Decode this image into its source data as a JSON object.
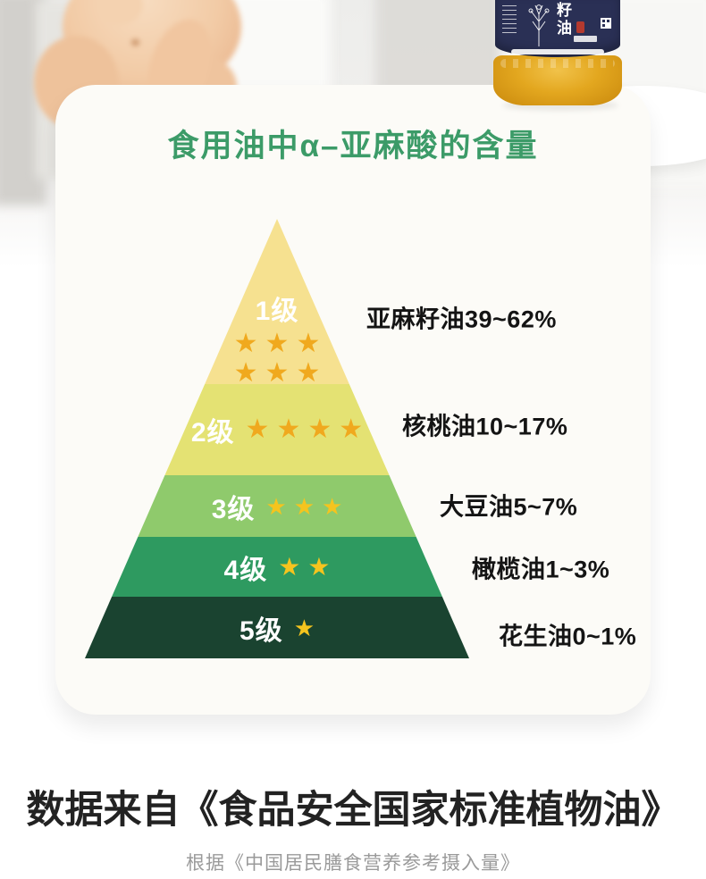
{
  "page": {
    "title": "食用油中α–亚麻酸的含量",
    "title_color": "#3C9B68"
  },
  "hero": {
    "bottle": {
      "label_text": "籽油",
      "label_color": "#2A3055",
      "oil_color": "#E3A71F"
    }
  },
  "chart_data": {
    "type": "pyramid",
    "title": "食用油中α–亚麻酸的含量",
    "value_unit": "% α-linolenic acid",
    "levels": [
      {
        "rank": "1级",
        "stars": 6,
        "oil": "亚麻籽油",
        "range": "39~62%",
        "label": "亚麻籽油39~62%",
        "color": "#F6E190",
        "star_color": "#F0A91E"
      },
      {
        "rank": "2级",
        "stars": 4,
        "oil": "核桃油",
        "range": "10~17%",
        "label": "核桃油10~17%",
        "color": "#E4E273",
        "star_color": "#F0A91E"
      },
      {
        "rank": "3级",
        "stars": 3,
        "oil": "大豆油",
        "range": "5~7%",
        "label": "大豆油5~7%",
        "color": "#8FCA6C",
        "star_color": "#F5C41E"
      },
      {
        "rank": "4级",
        "stars": 2,
        "oil": "橄榄油",
        "range": "1~3%",
        "label": "橄榄油1~3%",
        "color": "#2E9A60",
        "star_color": "#F5C41E"
      },
      {
        "rank": "5级",
        "stars": 1,
        "oil": "花生油",
        "range": "0~1%",
        "label": "花生油0~1%",
        "color": "#1A4330",
        "star_color": "#F5C41E"
      }
    ]
  },
  "footer": {
    "source": "数据来自《食品安全国家标准植物油》",
    "note": "根据《中国居民膳食营养参考摄入量》"
  }
}
